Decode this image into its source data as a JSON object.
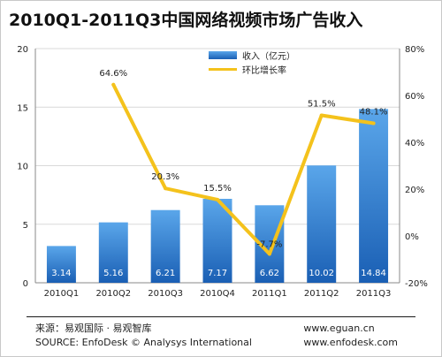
{
  "title": "2010Q1-2011Q3中国网络视频市场广告收入",
  "legend": {
    "bar_label": "收入（亿元）",
    "line_label": "环比增长率"
  },
  "colors": {
    "bar_top": "#5aa6ea",
    "bar_bottom": "#1a5fb4",
    "line": "#f4c21c",
    "grid": "#d9d9d9"
  },
  "footer": {
    "source_cn": "来源：易观国际 · 易观智库",
    "source_en": "SOURCE: EnfoDesk © Analysys International",
    "url1": "www.eguan.cn",
    "url2": "www.enfodesk.com"
  },
  "chart_data": {
    "type": "bar",
    "title": "2010Q1-2011Q3中国网络视频市场广告收入",
    "categories": [
      "2010Q1",
      "2010Q2",
      "2010Q3",
      "2010Q4",
      "2011Q1",
      "2011Q2",
      "2011Q3"
    ],
    "series": [
      {
        "name": "收入（亿元）",
        "type": "bar",
        "axis": "left",
        "values": [
          3.14,
          5.16,
          6.21,
          7.17,
          6.62,
          10.02,
          14.84
        ],
        "labels": [
          "3.14",
          "5.16",
          "6.21",
          "7.17",
          "6.62",
          "10.02",
          "14.84"
        ]
      },
      {
        "name": "环比增长率",
        "type": "line",
        "axis": "right",
        "values": [
          null,
          64.6,
          20.3,
          15.5,
          -7.7,
          51.5,
          48.1
        ],
        "labels": [
          "",
          "64.6%",
          "20.3%",
          "15.5%",
          "-7.7%",
          "51.5%",
          "48.1%"
        ]
      }
    ],
    "y_left": {
      "min": 0,
      "max": 20,
      "ticks": [
        "0",
        "5",
        "10",
        "15",
        "20"
      ]
    },
    "y_right": {
      "min": -20,
      "max": 80,
      "ticks": [
        "-20%",
        "0%",
        "20%",
        "40%",
        "60%",
        "80%"
      ]
    },
    "grid": true,
    "legend_position": "top-center"
  }
}
